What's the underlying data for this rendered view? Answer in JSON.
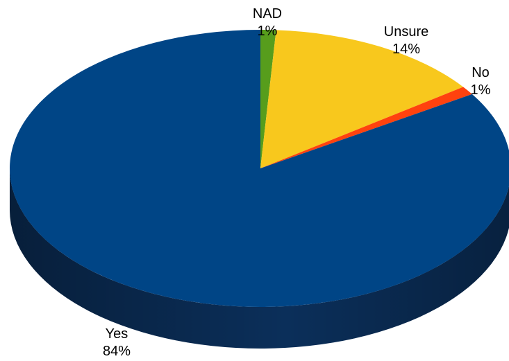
{
  "chart_data": {
    "type": "pie",
    "style": "3d",
    "title": "",
    "categories": [
      "NAD",
      "Unsure",
      "No",
      "Yes"
    ],
    "values": [
      1,
      14,
      1,
      84
    ],
    "value_labels": [
      "1%",
      "14%",
      "1%",
      "84%"
    ],
    "colors": [
      "#579d1c",
      "#f8c81d",
      "#ff420e",
      "#004586"
    ],
    "side_colors": [
      "#2f5a10",
      "#8f7208",
      "#8f2006",
      "#0b2f5a"
    ]
  }
}
